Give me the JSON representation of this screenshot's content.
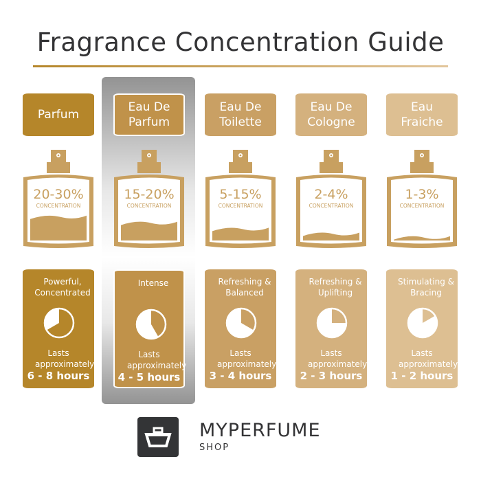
{
  "title": "Fragrance Concentration Guide",
  "highlighted_index": 1,
  "columns": [
    {
      "name": "Parfum",
      "concentration": "20-30%",
      "concentration_label": "CONCENTRATION",
      "liquid_level": 0.4,
      "description": "Powerful, Concentrated",
      "lasts_label": "Lasts approximately",
      "duration": "6 - 8 hours",
      "clock_hours": 8,
      "color": "#b5862a"
    },
    {
      "name": "Eau De Parfum",
      "concentration": "15-20%",
      "concentration_label": "CONCENTRATION",
      "liquid_level": 0.3,
      "description": "Intense",
      "lasts_label": "Lasts approximately",
      "duration": "4 - 5 hours",
      "clock_hours": 5,
      "color": "#c0924a"
    },
    {
      "name": "Eau De Toilette",
      "concentration": "5-15%",
      "concentration_label": "CONCENTRATION",
      "liquid_level": 0.2,
      "description": "Refreshing & Balanced",
      "lasts_label": "Lasts approximately",
      "duration": "3 - 4 hours",
      "clock_hours": 4,
      "color": "#c9a064"
    },
    {
      "name": "Eau De Cologne",
      "concentration": "2-4%",
      "concentration_label": "CONCENTRATION",
      "liquid_level": 0.12,
      "description": "Refreshing & Uplifting",
      "lasts_label": "Lasts approximately",
      "duration": "2 - 3 hours",
      "clock_hours": 3,
      "color": "#d4b17e"
    },
    {
      "name": "Eau Fraiche",
      "concentration": "1-3%",
      "concentration_label": "CONCENTRATION",
      "liquid_level": 0.06,
      "description": "Stimulating & Bracing",
      "lasts_label": "Lasts approximately",
      "duration": "1 - 2 hours",
      "clock_hours": 2,
      "color": "#ddbf92"
    }
  ],
  "logo": {
    "brand": "MYPERFUME",
    "sub": "SHOP",
    "icon": "perfume-bottle-logo-icon",
    "color": "#333436"
  },
  "accent": "#b5862a",
  "bottle_color": "#c8a060"
}
